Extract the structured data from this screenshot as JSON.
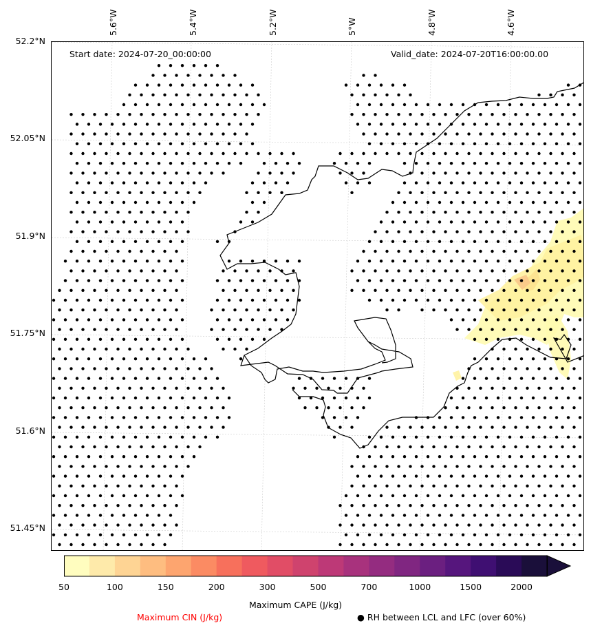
{
  "header": {
    "start_date": "Start date: 2024-07-20_00:00:00",
    "valid_date": "Valid_date: 2024-07-20T16:00:00.00"
  },
  "axes": {
    "longitude_labels": [
      "5.6°W",
      "5.4°W",
      "5.2°W",
      "5°W",
      "4.8°W",
      "4.6°W"
    ],
    "latitude_labels": [
      "52.2°N",
      "52.05°N",
      "51.9°N",
      "51.75°N",
      "51.6°N",
      "51.45°N"
    ]
  },
  "colorbar": {
    "label": "Maximum CAPE (J/kg)",
    "tick_labels": [
      "50",
      "100",
      "150",
      "200",
      "300",
      "500",
      "700",
      "1000",
      "1500",
      "2000"
    ],
    "colors": [
      "#fffdbf",
      "#feeaaa",
      "#fed494",
      "#febd80",
      "#fda56f",
      "#fb8b63",
      "#f7705c",
      "#ef5a5f",
      "#e14d66",
      "#cf436e",
      "#bd3977",
      "#a8327d",
      "#942c80",
      "#802681",
      "#6b1f80",
      "#56167d",
      "#3f0f72",
      "#2a0b57",
      "#1a0f3a"
    ],
    "extend": "max"
  },
  "legend": {
    "cin_label": "Maximum CIN (J/kg)",
    "rh_label": "● RH between LCL and LFC (over 60%)",
    "cin_color": "#ff0000"
  },
  "map_data": {
    "coastline_color": "#000000",
    "dot_color": "#000000",
    "cape_patch_colors": [
      "#fffbb0",
      "#fff2a0",
      "#fde28f",
      "#f9c88a"
    ]
  }
}
